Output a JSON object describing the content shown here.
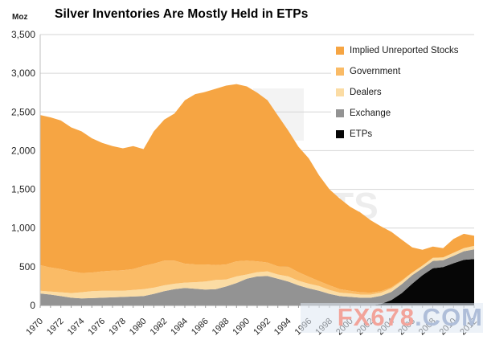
{
  "header": {
    "title": "Silver Inventories Are Mostly Held in ETPs",
    "y_unit": "Moz"
  },
  "legend": {
    "items": [
      {
        "label": "Implied Unreported Stocks",
        "color": "#F6A543"
      },
      {
        "label": "Government",
        "color": "#FABB66"
      },
      {
        "label": "Dealers",
        "color": "#FBDCA4"
      },
      {
        "label": "Exchange",
        "color": "#939393"
      },
      {
        "label": "ETPs",
        "color": "#060606"
      }
    ]
  },
  "watermark": {
    "part1": "FX678",
    "part2": ".COM",
    "color1": "#F2A49B",
    "color2": "#AFBED9"
  },
  "background_artifact": {
    "text": "TS"
  },
  "chart_data": {
    "type": "area",
    "stacked": true,
    "title": "Silver Inventories Are Mostly Held in ETPs",
    "ylabel": "Moz",
    "xlabel": "",
    "ylim": [
      0,
      3500
    ],
    "grid": true,
    "legend_position": "top-right",
    "y_tick_labels": [
      "0",
      "500",
      "1,000",
      "1,500",
      "2,000",
      "2,500",
      "3,000",
      "3,500"
    ],
    "y_tick_values": [
      0,
      500,
      1000,
      1500,
      2000,
      2500,
      3000,
      3500
    ],
    "x": [
      1970,
      1971,
      1972,
      1973,
      1974,
      1975,
      1976,
      1977,
      1978,
      1979,
      1980,
      1981,
      1982,
      1983,
      1984,
      1985,
      1986,
      1987,
      1988,
      1989,
      1990,
      1991,
      1992,
      1993,
      1994,
      1995,
      1996,
      1997,
      1998,
      1999,
      2000,
      2001,
      2002,
      2003,
      2004,
      2005,
      2006,
      2007,
      2008,
      2009,
      2010,
      2011,
      2012
    ],
    "x_label_step": 2,
    "series": [
      {
        "name": "ETPs",
        "color": "#060606",
        "values": [
          0,
          0,
          0,
          0,
          0,
          0,
          0,
          0,
          0,
          0,
          0,
          0,
          0,
          0,
          0,
          0,
          0,
          0,
          0,
          0,
          0,
          0,
          0,
          0,
          0,
          0,
          0,
          0,
          0,
          0,
          0,
          0,
          0,
          20,
          70,
          160,
          280,
          390,
          480,
          495,
          545,
          590,
          600
        ]
      },
      {
        "name": "Exchange",
        "color": "#939393",
        "values": [
          155,
          140,
          120,
          100,
          90,
          95,
          100,
          105,
          110,
          115,
          120,
          150,
          185,
          210,
          225,
          215,
          205,
          210,
          245,
          290,
          345,
          375,
          380,
          345,
          310,
          260,
          220,
          190,
          150,
          120,
          110,
          100,
          100,
          105,
          105,
          115,
          110,
          90,
          95,
          90,
          95,
          110,
          125
        ]
      },
      {
        "name": "Dealers",
        "color": "#FBDCA4",
        "values": [
          35,
          40,
          50,
          60,
          80,
          90,
          90,
          85,
          80,
          85,
          90,
          80,
          75,
          70,
          70,
          85,
          105,
          120,
          90,
          85,
          55,
          55,
          60,
          55,
          65,
          60,
          60,
          60,
          50,
          45,
          45,
          40,
          40,
          40,
          45,
          40,
          35,
          35,
          40,
          35,
          40,
          40,
          45
        ]
      },
      {
        "name": "Government",
        "color": "#FABB66",
        "values": [
          330,
          310,
          300,
          280,
          250,
          240,
          250,
          260,
          265,
          270,
          300,
          310,
          320,
          300,
          245,
          230,
          220,
          190,
          195,
          195,
          180,
          140,
          115,
          105,
          125,
          110,
          90,
          65,
          60,
          45,
          35,
          30,
          25,
          20,
          15,
          10,
          0,
          0,
          0,
          0,
          0,
          0,
          0
        ]
      },
      {
        "name": "Implied Unreported Stocks",
        "color": "#F6A543",
        "values": [
          1940,
          1940,
          1920,
          1860,
          1830,
          1735,
          1660,
          1610,
          1575,
          1590,
          1510,
          1710,
          1820,
          1900,
          2110,
          2200,
          2230,
          2280,
          2310,
          2290,
          2250,
          2180,
          2095,
          1950,
          1760,
          1620,
          1530,
          1365,
          1240,
          1170,
          1085,
          1030,
          935,
          835,
          715,
          525,
          325,
          205,
          145,
          120,
          180,
          185,
          130
        ]
      }
    ]
  }
}
